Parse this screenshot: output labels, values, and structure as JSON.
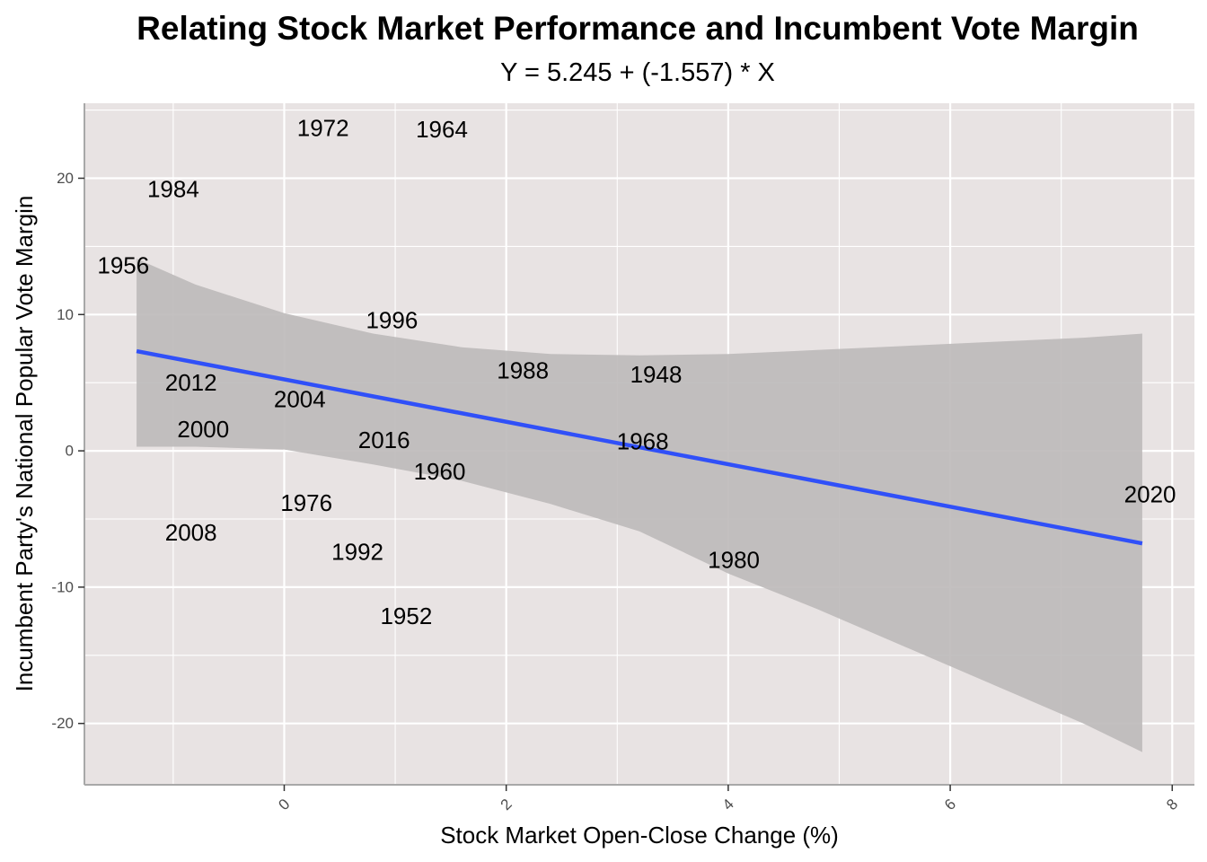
{
  "chart_data": {
    "type": "scatter",
    "title": "Relating Stock Market Performance and Incumbent Vote Margin",
    "subtitle": "Y = 5.245 + (-1.557) * X",
    "xlabel": "Stock Market Open-Close Change (%)",
    "ylabel": "Incumbent Party's National Popular Vote Margin",
    "xlim": [
      -1.8,
      8.2
    ],
    "ylim": [
      -24.5,
      25.5
    ],
    "x_ticks": [
      0,
      2,
      4,
      6,
      8
    ],
    "x_tick_labels": [
      "0",
      "2",
      "4",
      "6",
      "8"
    ],
    "y_ticks": [
      -20,
      -10,
      0,
      10,
      20
    ],
    "y_tick_labels": [
      "-20",
      "-10",
      "0",
      "10",
      "20"
    ],
    "grid": true,
    "colors": {
      "panel_background": "#e8e3e3",
      "grid": "#ffffff",
      "fit_line": "#3050f8",
      "confidence_band": "#bcb9b9"
    },
    "points": [
      {
        "label": "1948",
        "x": 3.35,
        "y": 5.6
      },
      {
        "label": "1952",
        "x": 1.1,
        "y": -12.1
      },
      {
        "label": "1956",
        "x": -1.45,
        "y": 13.6
      },
      {
        "label": "1960",
        "x": 1.4,
        "y": -1.5
      },
      {
        "label": "1964",
        "x": 1.42,
        "y": 23.6
      },
      {
        "label": "1968",
        "x": 3.23,
        "y": 0.7
      },
      {
        "label": "1972",
        "x": 0.35,
        "y": 23.7
      },
      {
        "label": "1976",
        "x": 0.2,
        "y": -3.8
      },
      {
        "label": "1980",
        "x": 4.05,
        "y": -8.0
      },
      {
        "label": "1984",
        "x": -1.0,
        "y": 19.2
      },
      {
        "label": "1988",
        "x": 2.15,
        "y": 5.9
      },
      {
        "label": "1992",
        "x": 0.66,
        "y": -7.4
      },
      {
        "label": "1996",
        "x": 0.97,
        "y": 9.6
      },
      {
        "label": "2000",
        "x": -0.73,
        "y": 1.6
      },
      {
        "label": "2004",
        "x": 0.14,
        "y": 3.8
      },
      {
        "label": "2008",
        "x": -0.84,
        "y": -6.0
      },
      {
        "label": "2012",
        "x": -0.84,
        "y": 5.0
      },
      {
        "label": "2016",
        "x": 0.9,
        "y": 0.8
      },
      {
        "label": "2020",
        "x": 7.8,
        "y": -3.2
      }
    ],
    "fit": {
      "intercept": 5.245,
      "slope": -1.557,
      "x_range": [
        -1.33,
        7.73
      ]
    },
    "confidence_band": {
      "x": [
        -1.33,
        -0.8,
        0,
        0.8,
        1.6,
        2.4,
        3.2,
        4.0,
        4.8,
        5.6,
        6.4,
        7.2,
        7.73
      ],
      "upper": [
        14.1,
        12.2,
        10.1,
        8.6,
        7.6,
        7.1,
        7.0,
        7.1,
        7.4,
        7.7,
        8.0,
        8.3,
        8.6
      ],
      "lower": [
        0.3,
        0.3,
        0.1,
        -1.0,
        -2.2,
        -3.9,
        -5.9,
        -9.0,
        -11.6,
        -14.4,
        -17.2,
        -20.0,
        -22.1
      ]
    }
  }
}
